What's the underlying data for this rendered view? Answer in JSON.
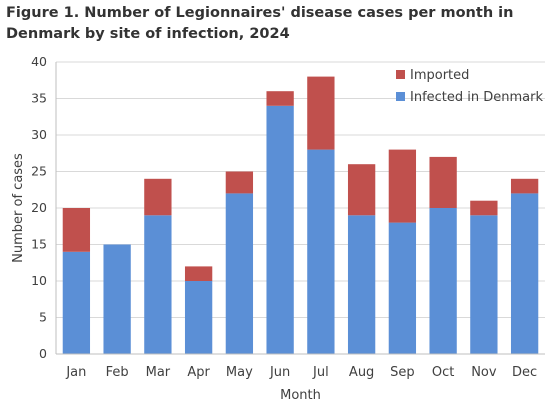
{
  "figure": {
    "title": "Figure 1. Number of Legionnaires' disease cases per month in Denmark by site of infection, 2024"
  },
  "chart_data": {
    "type": "bar",
    "stacked": true,
    "title": "Figure 1. Number of Legionnaires' disease cases per month in Denmark by site of infection, 2024",
    "xlabel": "Month",
    "ylabel": "Number of cases",
    "ylim": [
      0,
      40
    ],
    "yticks": [
      0,
      5,
      10,
      15,
      20,
      25,
      30,
      35,
      40
    ],
    "grid": true,
    "legend_position": "top-right",
    "categories": [
      "Jan",
      "Feb",
      "Mar",
      "Apr",
      "May",
      "Jun",
      "Jul",
      "Aug",
      "Sep",
      "Oct",
      "Nov",
      "Dec"
    ],
    "series": [
      {
        "name": "Infected in Denmark",
        "color": "#5b8fd6",
        "values": [
          14,
          15,
          19,
          10,
          22,
          34,
          28,
          19,
          18,
          20,
          19,
          22
        ]
      },
      {
        "name": "Imported",
        "color": "#c0504d",
        "values": [
          6,
          0,
          5,
          2,
          3,
          2,
          10,
          7,
          10,
          7,
          2,
          2
        ]
      }
    ],
    "legend_order": [
      "Imported",
      "Infected in Denmark"
    ]
  }
}
